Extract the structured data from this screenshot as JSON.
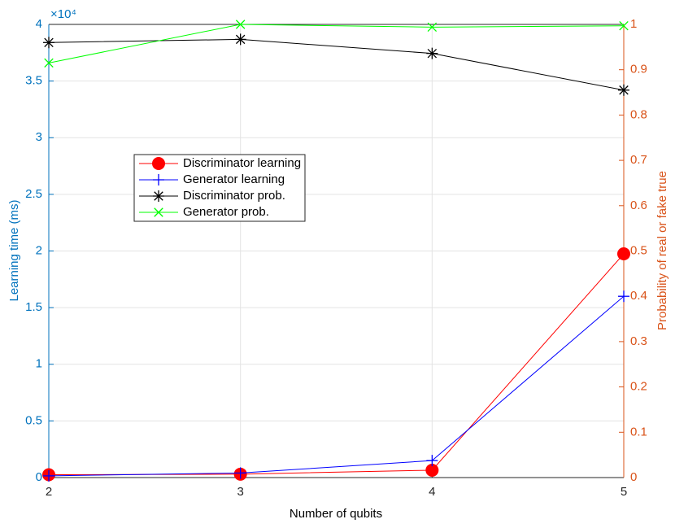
{
  "chart_data": {
    "type": "line",
    "x_label": "Number of qubits",
    "y_label": "Learning time (ms)",
    "y2_label": "Probability of real or fake true",
    "y_exponent_label": "×10⁴",
    "x": [
      2,
      3,
      4,
      5
    ],
    "xlim": [
      2,
      5
    ],
    "xticks": [
      2,
      3,
      4,
      5
    ],
    "ylim": [
      0,
      40000
    ],
    "yticks": [
      0,
      {
        "value": 5000,
        "label": "0.5"
      },
      {
        "value": 10000,
        "label": "1"
      },
      {
        "value": 15000,
        "label": "1.5"
      },
      {
        "value": 20000,
        "label": "2"
      },
      {
        "value": 25000,
        "label": "2.5"
      },
      {
        "value": 30000,
        "label": "3"
      },
      {
        "value": 35000,
        "label": "3.5"
      },
      {
        "value": 40000,
        "label": "4"
      }
    ],
    "y2lim": [
      0,
      1
    ],
    "y2ticks": [
      0,
      0.1,
      0.2,
      0.3,
      0.4,
      0.5,
      0.6,
      0.7,
      0.8,
      0.9,
      1
    ],
    "y_axis_color": "#0072bd",
    "y2_axis_color": "#d95319",
    "grid": true,
    "legend": "upper-left",
    "series": [
      {
        "name": "Discriminator learning",
        "color": "#ff0000",
        "marker": "o",
        "values": [
          250,
          300,
          650,
          19750
        ]
      },
      {
        "name": "Generator learning",
        "color": "#0000ff",
        "marker": "+",
        "values": [
          150,
          400,
          1500,
          16000
        ]
      },
      {
        "name": "Discriminator prob.",
        "color": "#000000",
        "marker": "*",
        "axis": "y2",
        "values": [
          0.96,
          0.967,
          0.936,
          0.855
        ]
      },
      {
        "name": "Generator prob.",
        "color": "#00ff00",
        "marker": "x",
        "axis": "y2",
        "values": [
          0.915,
          1.0,
          0.994,
          0.997
        ]
      }
    ]
  }
}
